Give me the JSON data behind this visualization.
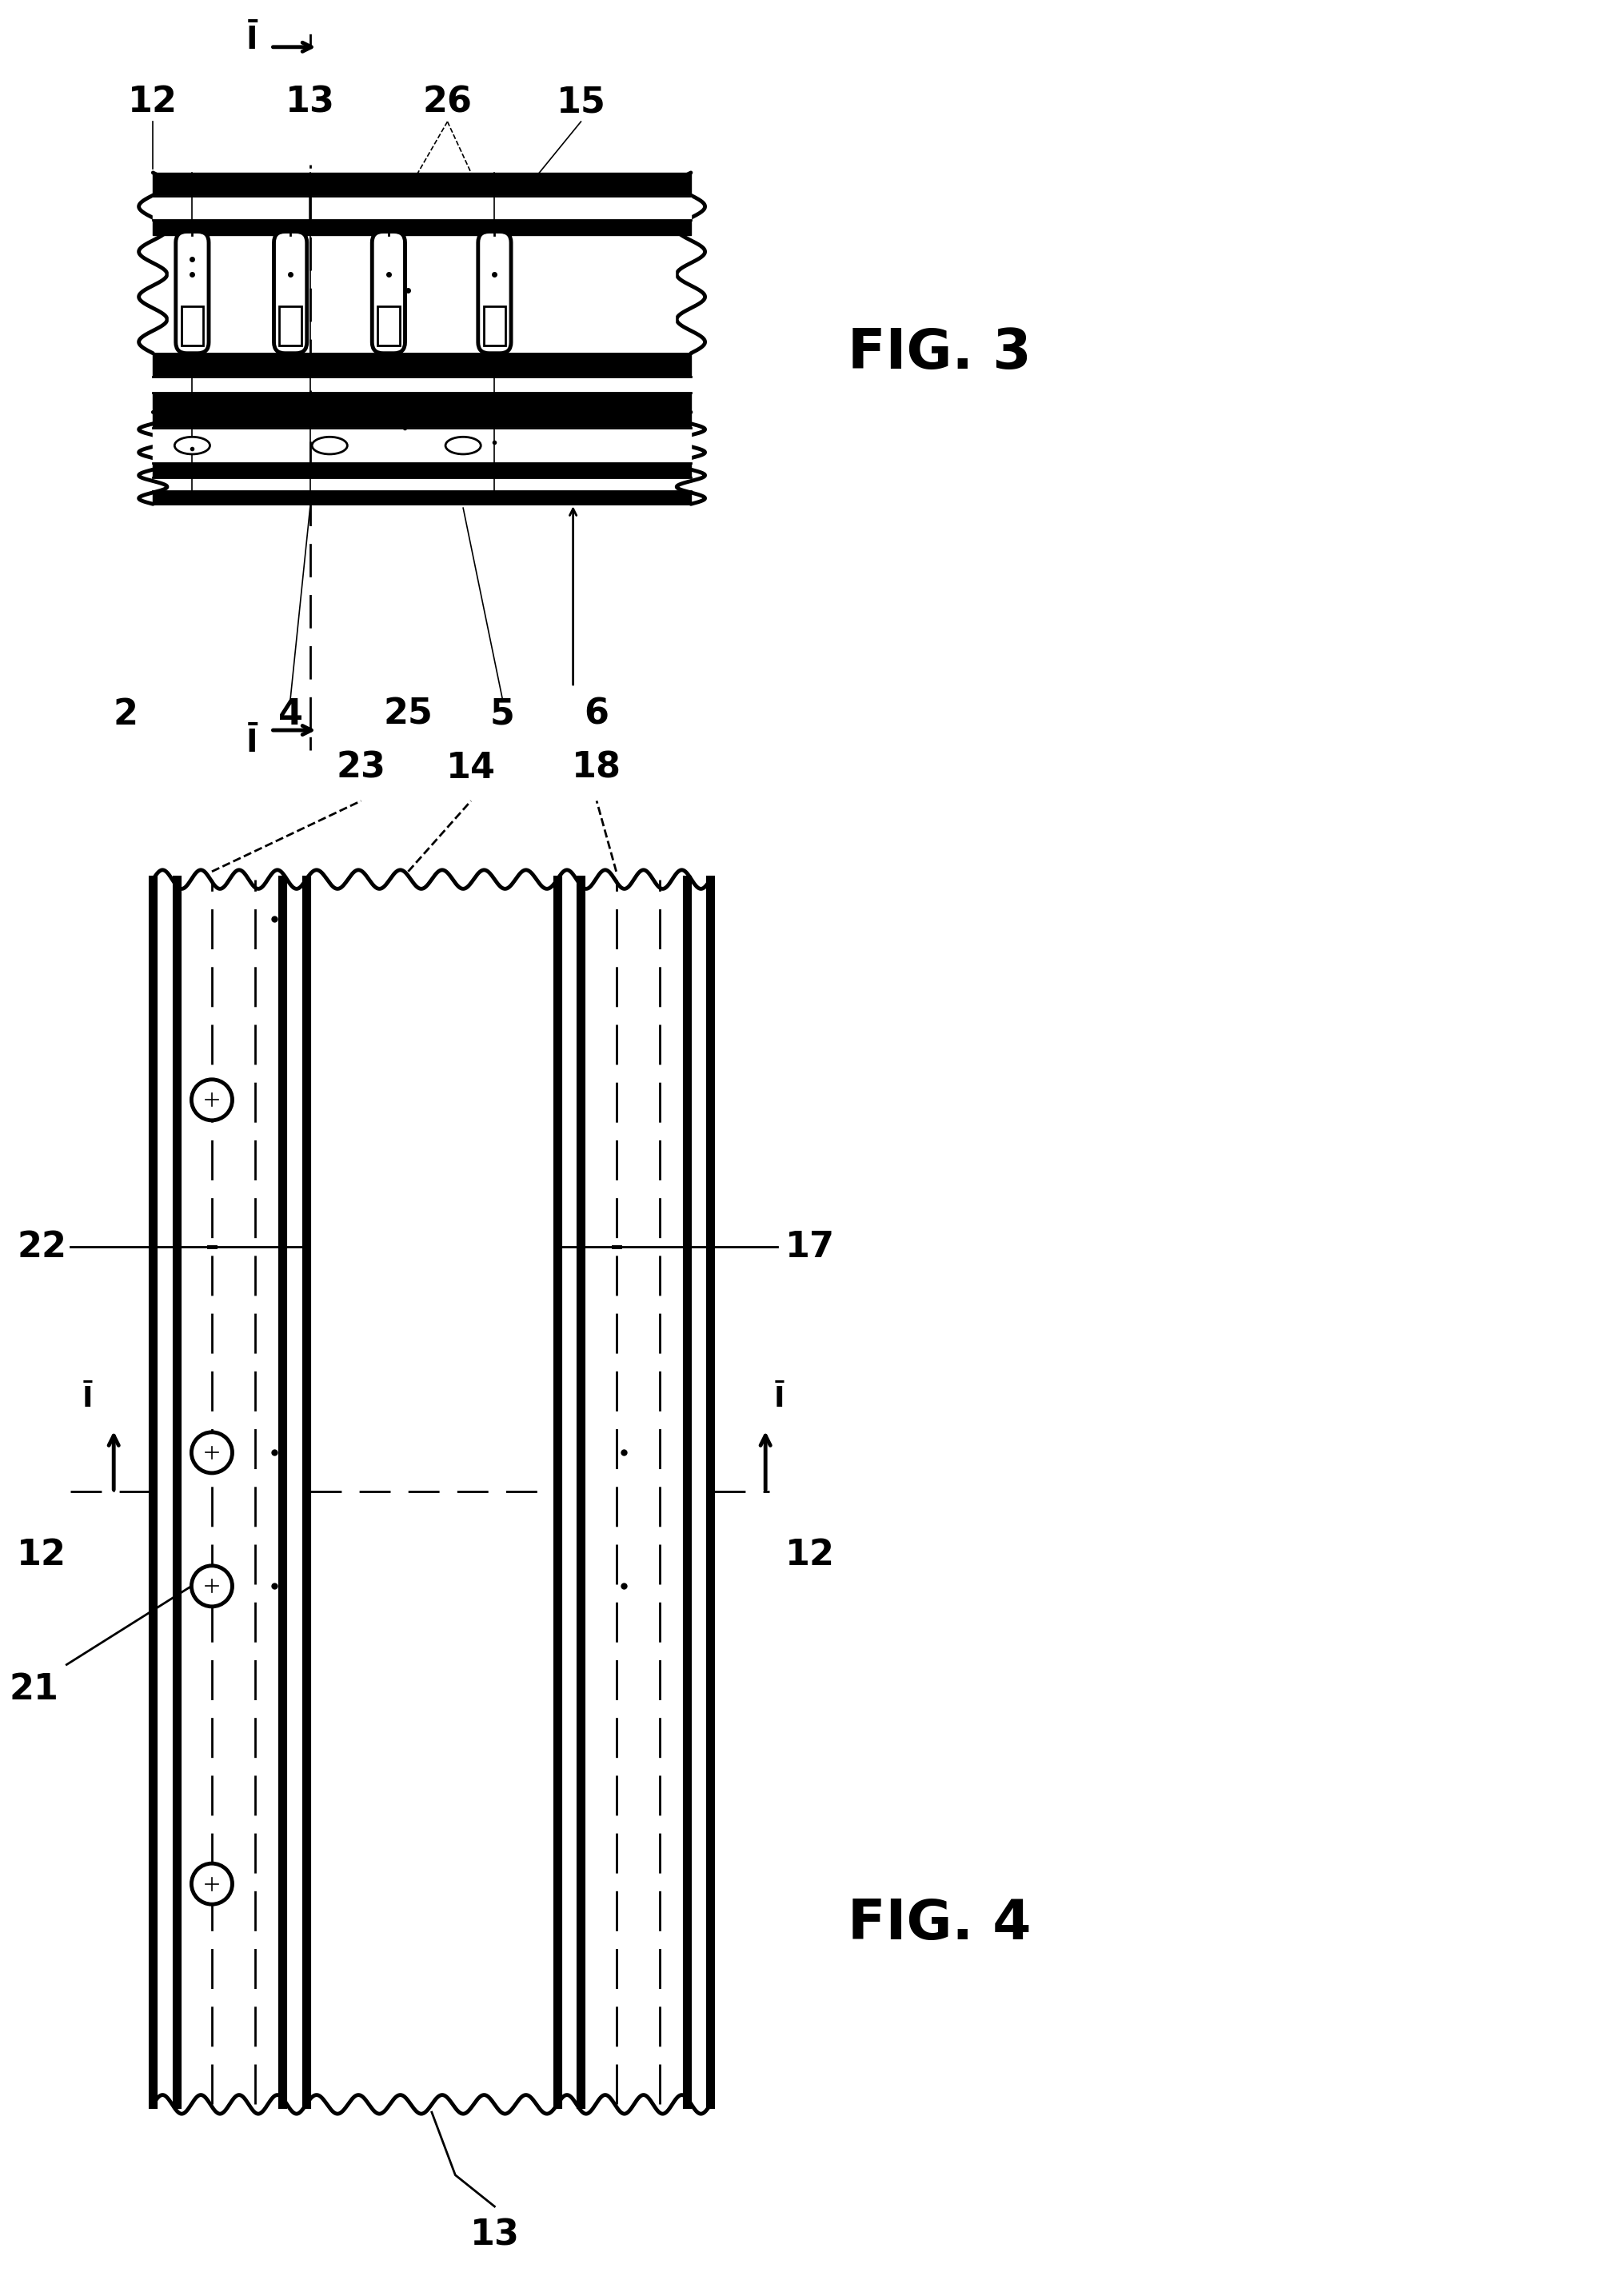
{
  "fig_width": 20.02,
  "fig_height": 28.71,
  "bg_color": "#ffffff",
  "lc": "#000000",
  "fig3_label": "FIG. 3",
  "fig4_label": "FIG. 4"
}
